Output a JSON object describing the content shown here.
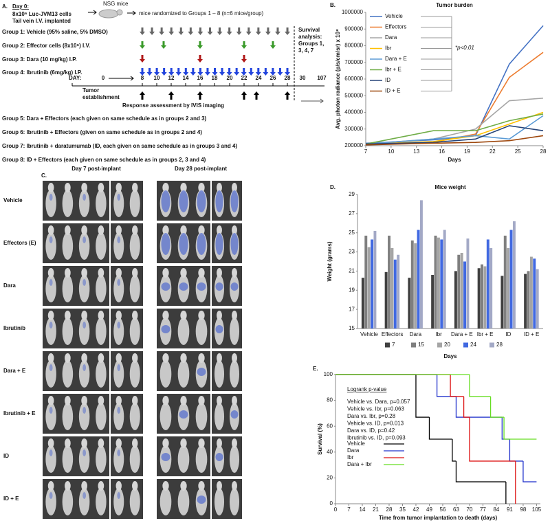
{
  "panel_a": {
    "label": "A.",
    "day0_title": "Day 0:",
    "day0_lines": [
      "8x10⁶ Luc-JVM13 cells",
      "Tail vein I.V. implanted"
    ],
    "mice": "NSG mice",
    "randomized": "mice randomized to Groups 1 – 8 (n=6 mice/group)",
    "groups": [
      "Group 1:  Vehicle (95% saline, 5% DMSO)",
      "Group 2:  Effector cells (8x10⁶) I.V.",
      "Group 3:  Dara (10 mg/kg) I.P.",
      "Group 4:  Ibrutinib (6mg/kg) I.P."
    ],
    "day_label": "DAY:",
    "days": [
      "0",
      "8",
      "10",
      "12",
      "14",
      "16",
      "18",
      "20",
      "22",
      "24",
      "26",
      "28",
      "30",
      "107"
    ],
    "tumor_establishment": [
      "Tumor",
      "establishment"
    ],
    "response": "Response assessment by IVIS imaging",
    "survival": [
      "Survival",
      "analysis:",
      "Groups 1,",
      "3, 4, 7"
    ],
    "combos": [
      "Group 5:  Dara + Effectors (each given on same schedule as in groups 2 and 3)",
      "Group 6:  Ibrutinib + Effectors (given on same schedule as in groups 2 and 4)",
      "Group 7:  Ibrutinib + daratumumab (ID, each given on same schedule as in groups 3 and 4)",
      "Group 8:  ID + Effectors (each given on same schedule as in groups 2, 3 and 4)"
    ]
  },
  "panel_c": {
    "label": "C.",
    "day7": "Day 7 post-implant",
    "day28": "Day 28 post-implant",
    "rows": [
      "Vehicle",
      "Effectors (E)",
      "Dara",
      "Ibrutinib",
      "Dara + E",
      "Ibrutinib + E",
      "ID",
      "ID +  E"
    ]
  },
  "chart_data": [
    {
      "panel": "B.",
      "type": "line",
      "title": "Tumor burden",
      "x_label": "Days",
      "y_label": "Avg. photon radiance (p/s/cm/sr) x 10⁸",
      "x": [
        7,
        15,
        20,
        24,
        28
      ],
      "xlim": [
        7,
        28
      ],
      "xticks": [
        7,
        10,
        13,
        16,
        19,
        22,
        25,
        28
      ],
      "ylim": [
        200000,
        1000000
      ],
      "yticks": [
        200000,
        300000,
        400000,
        500000,
        600000,
        700000,
        800000,
        900000,
        1000000
      ],
      "grid": false,
      "legend": "upper left",
      "annotation": "*p<0.01",
      "series": [
        {
          "name": "Vehicle",
          "color": "#4472c4",
          "values": [
            215000,
            235000,
            260000,
            690000,
            920000
          ]
        },
        {
          "name": "Effectors",
          "color": "#ed7d31",
          "values": [
            210000,
            220000,
            270000,
            610000,
            760000
          ]
        },
        {
          "name": "Dara",
          "color": "#a5a5a5",
          "values": [
            210000,
            240000,
            300000,
            470000,
            485000
          ]
        },
        {
          "name": "Ibr",
          "color": "#ffc000",
          "values": [
            210000,
            225000,
            260000,
            330000,
            400000
          ]
        },
        {
          "name": "Dara + E",
          "color": "#5b9bd5",
          "values": [
            210000,
            240000,
            260000,
            240000,
            380000
          ]
        },
        {
          "name": "Ibr + E",
          "color": "#70ad47",
          "values": [
            210000,
            290000,
            290000,
            350000,
            390000
          ]
        },
        {
          "name": "ID",
          "color": "#264478",
          "values": [
            210000,
            220000,
            240000,
            320000,
            290000
          ]
        },
        {
          "name": "ID + E",
          "color": "#9e480e",
          "values": [
            205000,
            215000,
            220000,
            230000,
            260000
          ]
        }
      ]
    },
    {
      "panel": "D.",
      "type": "bar",
      "title": "Mice weight",
      "x_label": "Days",
      "y_label": "Weight (grams)",
      "categories": [
        "Vehicle",
        "Effectors",
        "Dara",
        "Ibr",
        "Dara + E",
        "Ibr + E",
        "ID",
        "ID + E"
      ],
      "ylim": [
        15,
        29
      ],
      "yticks": [
        15,
        17,
        19,
        21,
        23,
        25,
        27,
        29
      ],
      "grid": false,
      "legend": "bottom",
      "series": [
        {
          "name": "7",
          "color": "#404040",
          "values": [
            20.3,
            20.9,
            20.3,
            20.6,
            21.0,
            21.3,
            20.5,
            20.7
          ]
        },
        {
          "name": "15",
          "color": "#7f7f7f",
          "values": [
            24.7,
            24.7,
            24.2,
            24.7,
            22.7,
            21.7,
            24.7,
            21.0
          ]
        },
        {
          "name": "20",
          "color": "#a5a5a5",
          "values": [
            23.5,
            23.4,
            23.9,
            24.5,
            22.9,
            21.5,
            23.4,
            22.5
          ]
        },
        {
          "name": "24",
          "color": "#4169e1",
          "values": [
            24.3,
            22.2,
            25.3,
            24.3,
            22.0,
            24.3,
            25.3,
            22.3
          ]
        },
        {
          "name": "28",
          "color": "#a3a9c6",
          "values": [
            25.2,
            22.7,
            28.4,
            25.3,
            24.4,
            23.4,
            26.2,
            21.2
          ]
        }
      ]
    },
    {
      "panel": "E.",
      "type": "step",
      "x_label": "Time from tumor implantation to death (days)",
      "y_label": "Survival (%)",
      "xlim": [
        0,
        107
      ],
      "xticks": [
        0,
        7,
        14,
        21,
        28,
        35,
        42,
        49,
        56,
        63,
        70,
        77,
        84,
        91,
        98,
        105
      ],
      "ylim": [
        0,
        100
      ],
      "yticks": [
        0,
        20,
        40,
        60,
        80,
        100
      ],
      "grid": false,
      "legend": "left",
      "legend_title": "Logrank p-value",
      "annotations": [
        "Vehicle vs. Dara, p=0.057",
        "Vehicle vs. Ibr, p=0.063",
        "Dara vs. Ibr, p=0.28",
        "Vehicle vs. ID, p=0.013",
        "Dara vs. ID, p=0.42",
        "Ibrutinib vs. ID, p=0.093"
      ],
      "series": [
        {
          "name": "Vehicle",
          "color": "#000000",
          "x": [
            0,
            42,
            49,
            61,
            63,
            89
          ],
          "values": [
            100,
            67,
            50,
            33,
            17,
            0
          ]
        },
        {
          "name": "Dara",
          "color": "#2233cc",
          "x": [
            0,
            53,
            63,
            87,
            91,
            98,
            105
          ],
          "values": [
            100,
            83,
            67,
            50,
            33,
            17,
            17
          ]
        },
        {
          "name": "Ibr",
          "color": "#dd1111",
          "x": [
            0,
            60,
            67,
            70,
            94
          ],
          "values": [
            100,
            83,
            67,
            33,
            0
          ]
        },
        {
          "name": "Dara + Ibr",
          "color": "#66dd22",
          "x": [
            0,
            70,
            81,
            88,
            105
          ],
          "values": [
            100,
            83,
            67,
            50,
            50
          ]
        }
      ]
    }
  ]
}
